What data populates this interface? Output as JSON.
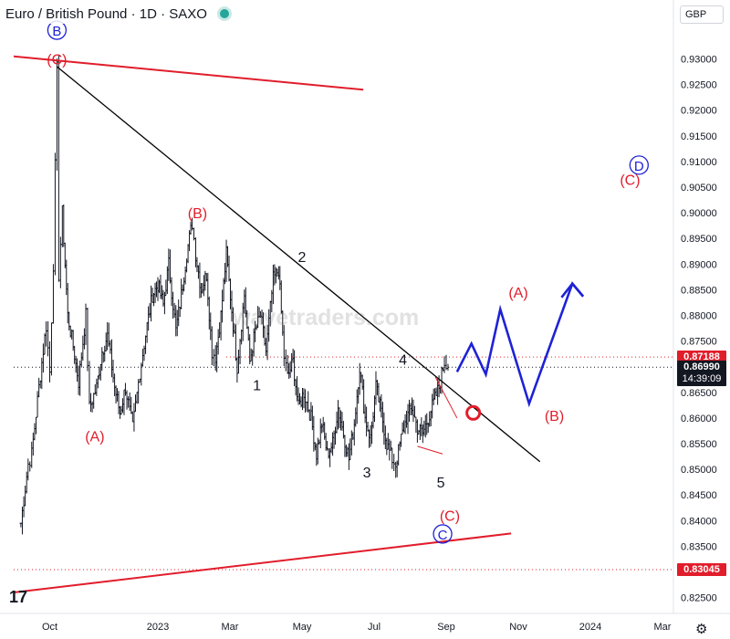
{
  "header": {
    "title": "Euro / British Pound · 1D · SAXO",
    "currency": "GBP"
  },
  "watermark": "wavetraders.com",
  "price_tags": {
    "level_high": {
      "value": "0.87188",
      "price": 0.87188,
      "color": "#e11d2b"
    },
    "last_price": {
      "value": "0.86990",
      "countdown": "14:39:09",
      "price": 0.8699,
      "color": "#131722"
    },
    "level_low": {
      "value": "0.83045",
      "price": 0.83045,
      "color": "#e11d2b"
    }
  },
  "chart_data": {
    "type": "line",
    "symbol": "EURGBP",
    "timeframe": "1D",
    "ylim": [
      0.8205,
      0.9365
    ],
    "xlim_months_from_sep_2022": [
      0,
      19.5
    ],
    "y_ticks": [
      0.825,
      0.83,
      0.835,
      0.84,
      0.845,
      0.85,
      0.855,
      0.86,
      0.865,
      0.87,
      0.875,
      0.88,
      0.885,
      0.89,
      0.895,
      0.9,
      0.905,
      0.91,
      0.915,
      0.92,
      0.925,
      0.93
    ],
    "x_ticks": [
      {
        "label": "Oct",
        "m": 1
      },
      {
        "label": "2023",
        "m": 4
      },
      {
        "label": "Mar",
        "m": 6
      },
      {
        "label": "May",
        "m": 8
      },
      {
        "label": "Jul",
        "m": 10
      },
      {
        "label": "Sep",
        "m": 12
      },
      {
        "label": "Nov",
        "m": 14
      },
      {
        "label": "2024",
        "m": 16
      },
      {
        "label": "Mar",
        "m": 18
      }
    ],
    "price_path": [
      [
        0.2,
        0.8395
      ],
      [
        0.4,
        0.851
      ],
      [
        0.5,
        0.853
      ],
      [
        0.7,
        0.866
      ],
      [
        0.9,
        0.878
      ],
      [
        1.0,
        0.869
      ],
      [
        1.1,
        0.89
      ],
      [
        1.2,
        0.928
      ],
      [
        1.25,
        0.888
      ],
      [
        1.35,
        0.9
      ],
      [
        1.5,
        0.88
      ],
      [
        1.65,
        0.874
      ],
      [
        1.8,
        0.867
      ],
      [
        2.0,
        0.88
      ],
      [
        2.1,
        0.862
      ],
      [
        2.3,
        0.866
      ],
      [
        2.45,
        0.873
      ],
      [
        2.6,
        0.876
      ],
      [
        2.8,
        0.866
      ],
      [
        2.95,
        0.861
      ],
      [
        3.1,
        0.866
      ],
      [
        3.3,
        0.858
      ],
      [
        3.5,
        0.869
      ],
      [
        3.7,
        0.878
      ],
      [
        3.85,
        0.884
      ],
      [
        4.0,
        0.886
      ],
      [
        4.15,
        0.882
      ],
      [
        4.3,
        0.89
      ],
      [
        4.5,
        0.877
      ],
      [
        4.65,
        0.884
      ],
      [
        4.8,
        0.892
      ],
      [
        4.95,
        0.898
      ],
      [
        5.05,
        0.892
      ],
      [
        5.2,
        0.885
      ],
      [
        5.35,
        0.888
      ],
      [
        5.5,
        0.873
      ],
      [
        5.6,
        0.872
      ],
      [
        5.75,
        0.88
      ],
      [
        5.9,
        0.892
      ],
      [
        6.05,
        0.881
      ],
      [
        6.2,
        0.87
      ],
      [
        6.4,
        0.884
      ],
      [
        6.55,
        0.871
      ],
      [
        6.7,
        0.877
      ],
      [
        6.85,
        0.88
      ],
      [
        7.0,
        0.873
      ],
      [
        7.2,
        0.887
      ],
      [
        7.35,
        0.889
      ],
      [
        7.5,
        0.872
      ],
      [
        7.6,
        0.868
      ],
      [
        7.75,
        0.871
      ],
      [
        7.9,
        0.862
      ],
      [
        8.05,
        0.865
      ],
      [
        8.25,
        0.86
      ],
      [
        8.4,
        0.853
      ],
      [
        8.55,
        0.859
      ],
      [
        8.7,
        0.853
      ],
      [
        8.85,
        0.855
      ],
      [
        9.0,
        0.862
      ],
      [
        9.15,
        0.857
      ],
      [
        9.3,
        0.852
      ],
      [
        9.45,
        0.859
      ],
      [
        9.6,
        0.87
      ],
      [
        9.75,
        0.86
      ],
      [
        9.9,
        0.856
      ],
      [
        10.05,
        0.866
      ],
      [
        10.2,
        0.861
      ],
      [
        10.35,
        0.855
      ],
      [
        10.5,
        0.852
      ],
      [
        10.6,
        0.851
      ],
      [
        10.75,
        0.856
      ],
      [
        10.9,
        0.86
      ],
      [
        11.05,
        0.862
      ],
      [
        11.2,
        0.858
      ],
      [
        11.35,
        0.857
      ],
      [
        11.5,
        0.86
      ],
      [
        11.65,
        0.863
      ],
      [
        11.8,
        0.866
      ],
      [
        11.95,
        0.871
      ],
      [
        12.05,
        0.8699
      ]
    ],
    "series": [
      {
        "name": "",
        "style": "black-line",
        "color": "#000000",
        "points": [
          [
            1.2,
            0.9285
          ],
          [
            14.6,
            0.8515
          ]
        ]
      },
      {
        "name": "",
        "style": "red-line",
        "color": "#e11d2b",
        "points": [
          [
            0.0,
            0.9305
          ],
          [
            9.7,
            0.924
          ]
        ]
      },
      {
        "name": "",
        "style": "red-line",
        "color": "#e11d2b",
        "points": [
          [
            0.0,
            0.826
          ],
          [
            13.8,
            0.8375
          ]
        ]
      },
      {
        "name": "",
        "style": "red-thin",
        "color": "#e11d2b",
        "points": [
          [
            11.2,
            0.8545
          ],
          [
            11.9,
            0.853
          ]
        ]
      },
      {
        "name": "",
        "style": "red-thin",
        "color": "#e11d2b",
        "points": [
          [
            11.7,
            0.868
          ],
          [
            12.3,
            0.86
          ]
        ]
      },
      {
        "name": "",
        "style": "blue-projection",
        "color": "#1e22d6",
        "points": [
          [
            12.3,
            0.869
          ],
          [
            12.7,
            0.8745
          ],
          [
            13.1,
            0.8685
          ],
          [
            13.5,
            0.8812
          ],
          [
            14.3,
            0.8628
          ],
          [
            15.5,
            0.8862
          ],
          [
            15.8,
            0.8837
          ]
        ]
      }
    ],
    "dotted_levels": [
      {
        "price": 0.87188,
        "from_m": 5.9,
        "color": "#e11d2b"
      },
      {
        "price": 0.8699,
        "from_m": 0,
        "color": "#131722"
      },
      {
        "price": 0.83045,
        "from_m": 0,
        "color": "#e11d2b"
      }
    ],
    "annotations": [
      {
        "text": "(C)",
        "m": 1.2,
        "p": 0.93,
        "color": "#e11d2b"
      },
      {
        "text": "(B)",
        "m": 5.1,
        "p": 0.9,
        "color": "#e11d2b"
      },
      {
        "text": "(A)",
        "m": 2.25,
        "p": 0.8565,
        "color": "#e11d2b"
      },
      {
        "text": "(C)",
        "m": 12.1,
        "p": 0.841,
        "color": "#e11d2b"
      },
      {
        "text": "(A)",
        "m": 14.0,
        "p": 0.8845,
        "color": "#e11d2b"
      },
      {
        "text": "(B)",
        "m": 15.0,
        "p": 0.8605,
        "color": "#e11d2b"
      },
      {
        "text": "(C)",
        "m": 17.1,
        "p": 0.9065,
        "color": "#e11d2b"
      },
      {
        "text": "1",
        "m": 6.75,
        "p": 0.8665,
        "color": "#131722"
      },
      {
        "text": "2",
        "m": 8.0,
        "p": 0.8915,
        "color": "#131722"
      },
      {
        "text": "3",
        "m": 9.8,
        "p": 0.8495,
        "color": "#131722"
      },
      {
        "text": "4",
        "m": 10.8,
        "p": 0.8715,
        "color": "#131722"
      },
      {
        "text": "5",
        "m": 11.85,
        "p": 0.8475,
        "color": "#131722"
      }
    ],
    "circled_labels": [
      {
        "text": "B",
        "m": 1.2,
        "p": 0.9356,
        "color": "#1e22d6"
      },
      {
        "text": "C",
        "m": 11.9,
        "p": 0.8374,
        "color": "#1e22d6"
      },
      {
        "text": "D",
        "m": 17.35,
        "p": 0.9093,
        "color": "#1e22d6"
      }
    ],
    "markers": [
      {
        "name": "breakout-circle",
        "m": 12.75,
        "p": 0.861,
        "color": "#e11d2b"
      }
    ]
  }
}
